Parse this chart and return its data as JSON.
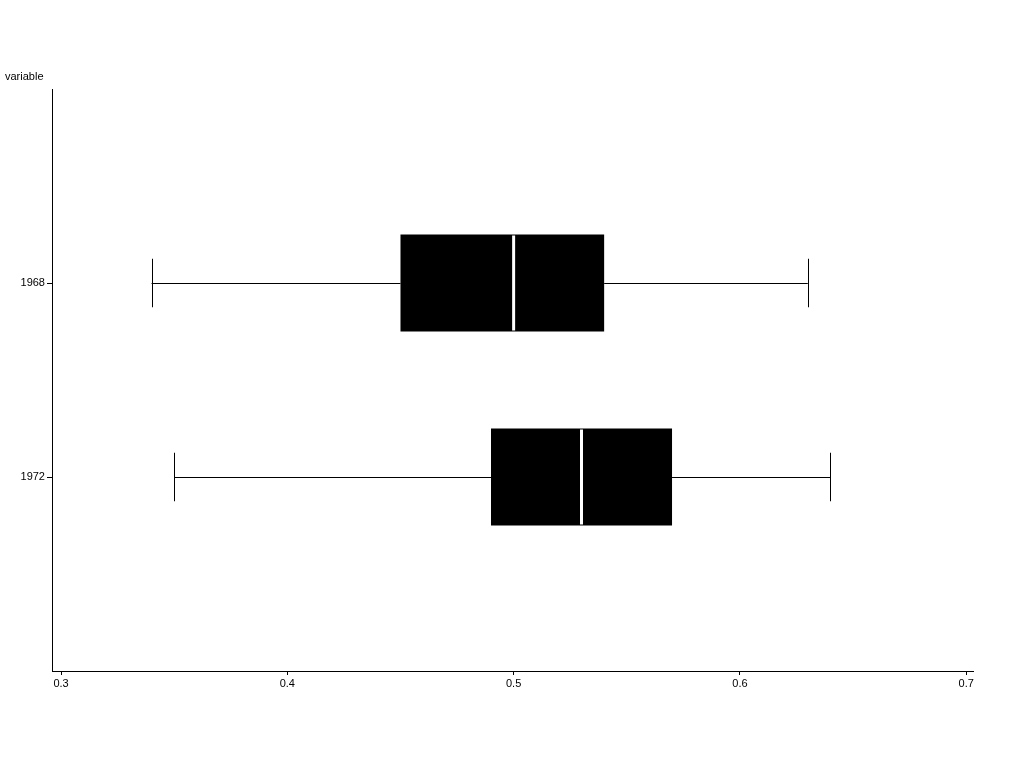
{
  "chart_data": {
    "type": "box",
    "ylabel": "variable",
    "categories": [
      "1968",
      "1972"
    ],
    "orientation": "horizontal",
    "color": "#000000",
    "boxes": [
      {
        "low": 0.34,
        "q1": 0.45,
        "median": 0.5,
        "q3": 0.54,
        "high": 0.63
      },
      {
        "low": 0.35,
        "q1": 0.49,
        "median": 0.53,
        "q3": 0.57,
        "high": 0.64
      }
    ],
    "xlim": [
      0.296,
      0.703
    ],
    "xticks": [
      0.3,
      0.4,
      0.5,
      0.6,
      0.7
    ]
  }
}
